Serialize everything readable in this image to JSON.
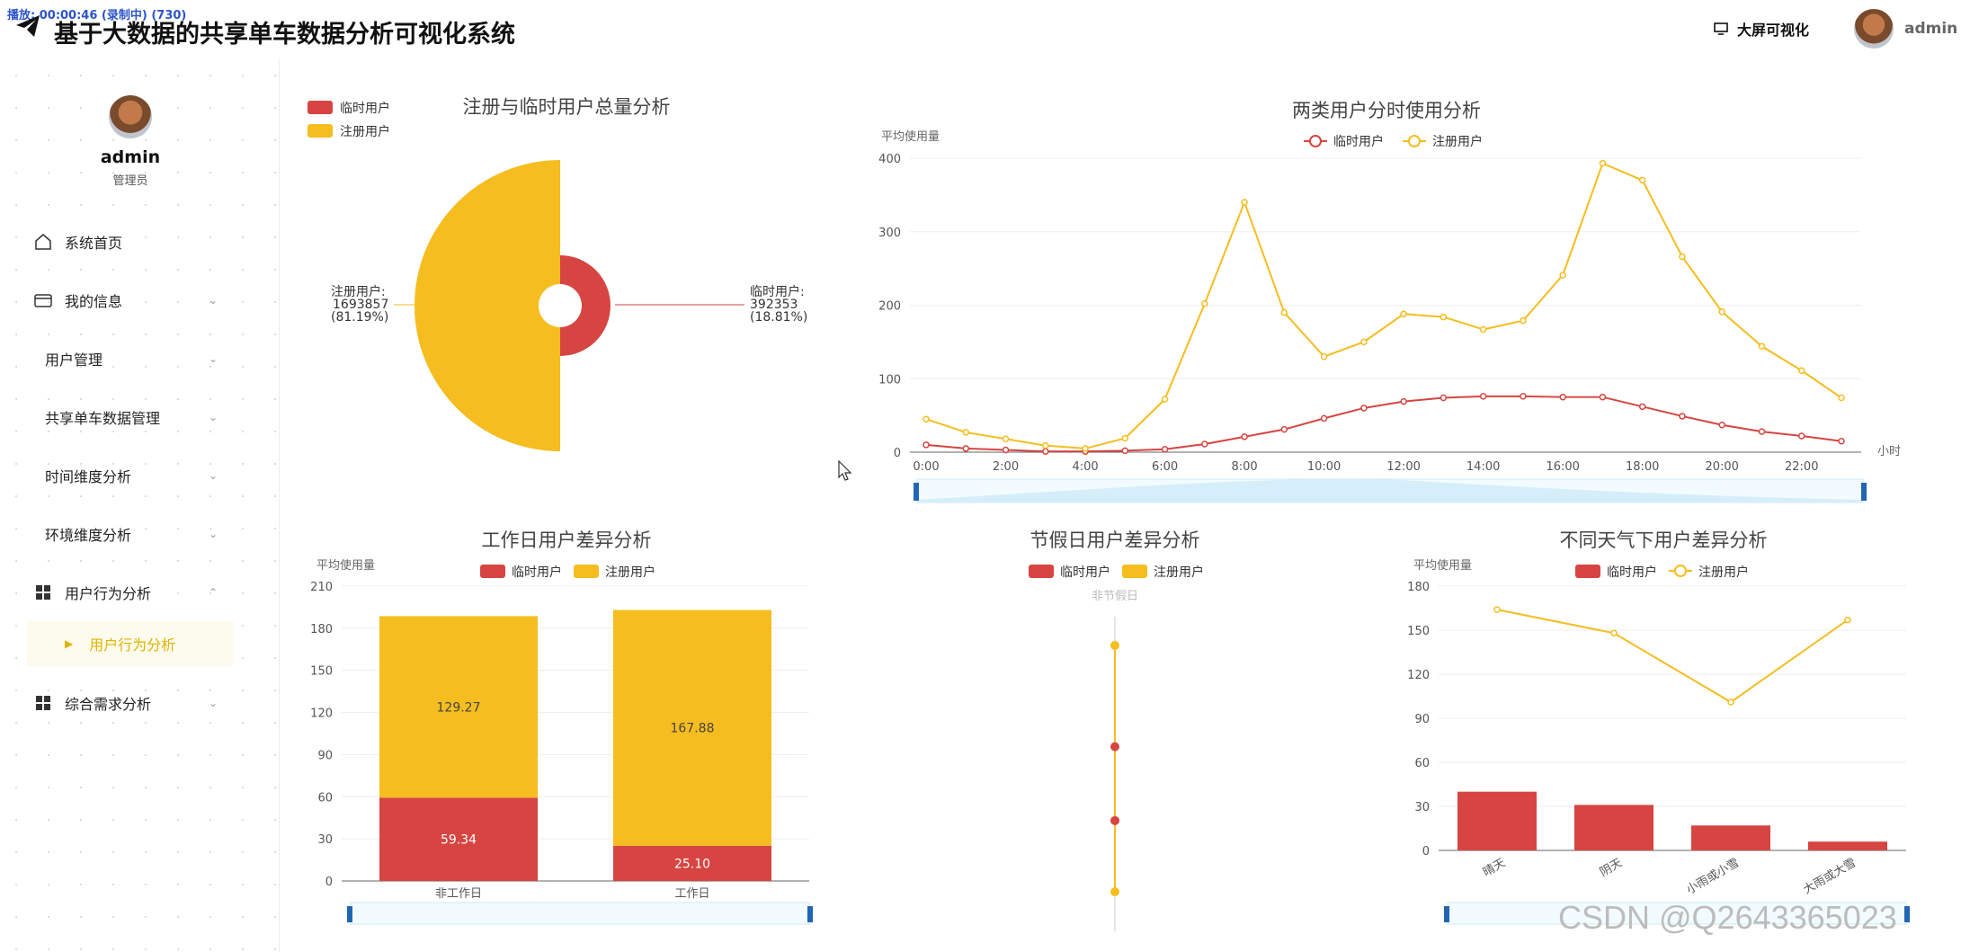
{
  "header": {
    "rec_overlay": "播放: 00:00:46 (录制中) (730)",
    "title": "基于大数据的共享单车数据分析可视化系统",
    "screen_label": "大屏可视化",
    "user": "admin"
  },
  "profile": {
    "name": "admin",
    "role": "管理员"
  },
  "menu": [
    {
      "label": "系统首页",
      "icon": "home-icon",
      "chevron": false
    },
    {
      "label": "我的信息",
      "icon": "wallet-icon",
      "chevron": true
    },
    {
      "label": "用户管理",
      "icon": "",
      "chevron": true
    },
    {
      "label": "共享单车数据管理",
      "icon": "",
      "chevron": true
    },
    {
      "label": "时间维度分析",
      "icon": "",
      "chevron": true
    },
    {
      "label": "环境维度分析",
      "icon": "",
      "chevron": true
    },
    {
      "label": "用户行为分析",
      "icon": "grid-icon",
      "chevron": true,
      "expanded": true
    },
    {
      "label": "综合需求分析",
      "icon": "grid-icon",
      "chevron": true
    }
  ],
  "submenu_active": "用户行为分析",
  "watermark": "CSDN @Q2643365023",
  "colors": {
    "casual": "#d64541",
    "registered": "#f5bd1f"
  },
  "chart_data": [
    {
      "type": "pie",
      "title": "注册与临时用户总量分析",
      "legend": [
        "临时用户",
        "注册用户"
      ],
      "slices": [
        {
          "name": "注册用户",
          "value": 1693857,
          "percent": "81.19%"
        },
        {
          "name": "临时用户",
          "value": 392353,
          "percent": "18.81%"
        }
      ]
    },
    {
      "type": "line",
      "title": "两类用户分时使用分析",
      "ylabel": "平均使用量",
      "xunit": "小时",
      "ylim": [
        0,
        400
      ],
      "yticks": [
        0,
        100,
        200,
        300,
        400
      ],
      "categories": [
        "0:00",
        "1:00",
        "2:00",
        "3:00",
        "4:00",
        "5:00",
        "6:00",
        "7:00",
        "8:00",
        "9:00",
        "10:00",
        "11:00",
        "12:00",
        "13:00",
        "14:00",
        "15:00",
        "16:00",
        "17:00",
        "18:00",
        "19:00",
        "20:00",
        "21:00",
        "22:00",
        "23:00"
      ],
      "xtick_labels": [
        "0:00",
        "2:00",
        "4:00",
        "6:00",
        "8:00",
        "10:00",
        "12:00",
        "14:00",
        "16:00",
        "18:00",
        "20:00",
        "22:00"
      ],
      "series": [
        {
          "name": "临时用户",
          "values": [
            10,
            5,
            3,
            1,
            1,
            2,
            4,
            11,
            21,
            31,
            46,
            60,
            69,
            74,
            76,
            76,
            75,
            75,
            62,
            49,
            37,
            28,
            22,
            15
          ]
        },
        {
          "name": "注册用户",
          "values": [
            45,
            27,
            18,
            9,
            5,
            19,
            72,
            202,
            340,
            190,
            130,
            150,
            188,
            184,
            167,
            179,
            241,
            393,
            370,
            266,
            191,
            144,
            111,
            74
          ]
        }
      ]
    },
    {
      "type": "bar",
      "title": "工作日用户差异分析",
      "ylabel": "平均使用量",
      "legend": [
        "临时用户",
        "注册用户"
      ],
      "categories": [
        "非工作日",
        "工作日"
      ],
      "ylim": [
        0,
        210
      ],
      "yticks": [
        0,
        30,
        60,
        90,
        120,
        150,
        180,
        210
      ],
      "series": [
        {
          "name": "临时用户",
          "values": [
            59.34,
            25.1
          ],
          "labels": [
            "59.34",
            "25.10"
          ]
        },
        {
          "name": "注册用户",
          "values": [
            129.27,
            167.88
          ],
          "labels": [
            "129.27",
            "167.88"
          ]
        }
      ]
    },
    {
      "type": "scatter",
      "title": "节假日用户差异分析",
      "legend": [
        "临时用户",
        "注册用户"
      ],
      "categories": [
        "非节假日"
      ],
      "points": [
        {
          "series": "注册用户",
          "value": 0.9
        },
        {
          "series": "临时用户",
          "value": 0.53
        },
        {
          "series": "临时用户",
          "value": 0.26
        },
        {
          "series": "注册用户",
          "value": 0.0
        }
      ]
    },
    {
      "type": "bar",
      "title": "不同天气下用户差异分析",
      "ylabel": "平均使用量",
      "legend": [
        "临时用户",
        "注册用户"
      ],
      "categories": [
        "晴天",
        "阴天",
        "小雨或小雪",
        "大雨或大雪"
      ],
      "ylim": [
        0,
        180
      ],
      "yticks": [
        0,
        30,
        60,
        90,
        120,
        150,
        180
      ],
      "series": [
        {
          "name": "临时用户",
          "values": [
            40,
            31,
            17,
            6
          ]
        },
        {
          "name": "注册用户",
          "values": [
            164,
            148,
            101,
            157
          ]
        }
      ]
    }
  ]
}
